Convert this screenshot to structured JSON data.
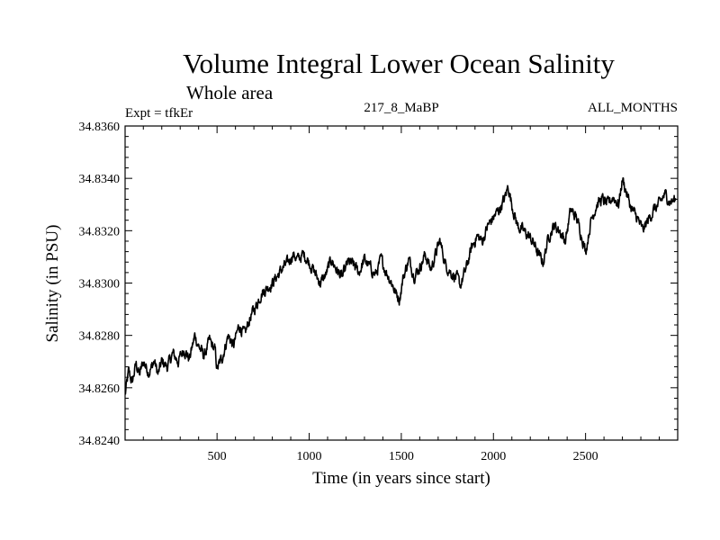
{
  "chart_data": {
    "type": "line",
    "title": "Volume Integral Lower Ocean Salinity",
    "subtitle": "Whole area",
    "experiment_label": "Expt = tfkEr",
    "run_label": "217_8_MaBP",
    "period_label": "ALL_MONTHS",
    "xlabel": "Time (in years since start)",
    "ylabel": "Salinity (in PSU)",
    "xlim": [
      1,
      3000
    ],
    "ylim": [
      34.824,
      34.836
    ],
    "x_ticks": [
      500,
      1000,
      1500,
      2000,
      2500
    ],
    "x_tick_labels": [
      "500",
      "1000",
      "1500",
      "2000",
      "2500"
    ],
    "y_ticks": [
      34.824,
      34.826,
      34.828,
      34.83,
      34.832,
      34.834,
      34.836
    ],
    "y_tick_labels": [
      "34.8240",
      "34.8260",
      "34.8280",
      "34.8300",
      "34.8320",
      "34.8340",
      "34.8360"
    ],
    "line_color": "#000000",
    "series": [
      {
        "x": [
          1,
          20,
          40,
          60,
          80,
          100,
          130,
          160,
          180,
          200,
          230,
          260,
          290,
          320,
          350,
          380,
          400,
          430,
          460,
          490,
          500,
          530,
          560,
          590,
          620,
          650,
          680,
          710,
          740,
          770,
          800,
          830,
          860,
          890,
          910,
          940,
          970,
          1000,
          1030,
          1060,
          1090,
          1120,
          1150,
          1180,
          1210,
          1240,
          1270,
          1300,
          1330,
          1360,
          1390,
          1420,
          1450,
          1470,
          1490,
          1510,
          1540,
          1570,
          1600,
          1630,
          1660,
          1690,
          1710,
          1740,
          1770,
          1800,
          1820,
          1850,
          1880,
          1910,
          1940,
          1970,
          2000,
          2030,
          2060,
          2080,
          2100,
          2130,
          2160,
          2190,
          2220,
          2250,
          2270,
          2300,
          2330,
          2360,
          2390,
          2420,
          2450,
          2480,
          2500,
          2530,
          2560,
          2590,
          2620,
          2650,
          2680,
          2700,
          2720,
          2750,
          2780,
          2810,
          2840,
          2870,
          2900,
          2930,
          2960,
          2990
        ],
        "y": [
          34.8257,
          34.8266,
          34.8262,
          34.8269,
          34.8265,
          34.827,
          34.8266,
          34.827,
          34.8265,
          34.827,
          34.8268,
          34.8273,
          34.827,
          34.8275,
          34.8271,
          34.828,
          34.8276,
          34.8272,
          34.8278,
          34.8274,
          34.8267,
          34.8272,
          34.828,
          34.8276,
          34.8284,
          34.828,
          34.8287,
          34.8291,
          34.8296,
          34.8298,
          34.83,
          34.8303,
          34.8306,
          34.8308,
          34.8311,
          34.8309,
          34.8311,
          34.8308,
          34.8304,
          34.83,
          34.8303,
          34.8309,
          34.8305,
          34.8302,
          34.8308,
          34.8307,
          34.8304,
          34.8309,
          34.8306,
          34.8303,
          34.8309,
          34.8304,
          34.83,
          34.8296,
          34.8294,
          34.8302,
          34.8309,
          34.8303,
          34.8306,
          34.8311,
          34.8305,
          34.8312,
          34.8316,
          34.8307,
          34.8304,
          34.8302,
          34.8299,
          34.8305,
          34.8313,
          34.8318,
          34.8316,
          34.8322,
          34.8325,
          34.8328,
          34.8332,
          34.8337,
          34.833,
          34.8322,
          34.832,
          34.8318,
          34.8315,
          34.831,
          34.8308,
          34.8318,
          34.8322,
          34.832,
          34.8316,
          34.8328,
          34.8325,
          34.8318,
          34.8312,
          34.8324,
          34.833,
          34.8332,
          34.833,
          34.8333,
          34.833,
          34.834,
          34.8335,
          34.8328,
          34.8325,
          34.832,
          34.8324,
          34.8328,
          34.833,
          34.8334,
          34.8331,
          34.8332
        ]
      }
    ]
  }
}
